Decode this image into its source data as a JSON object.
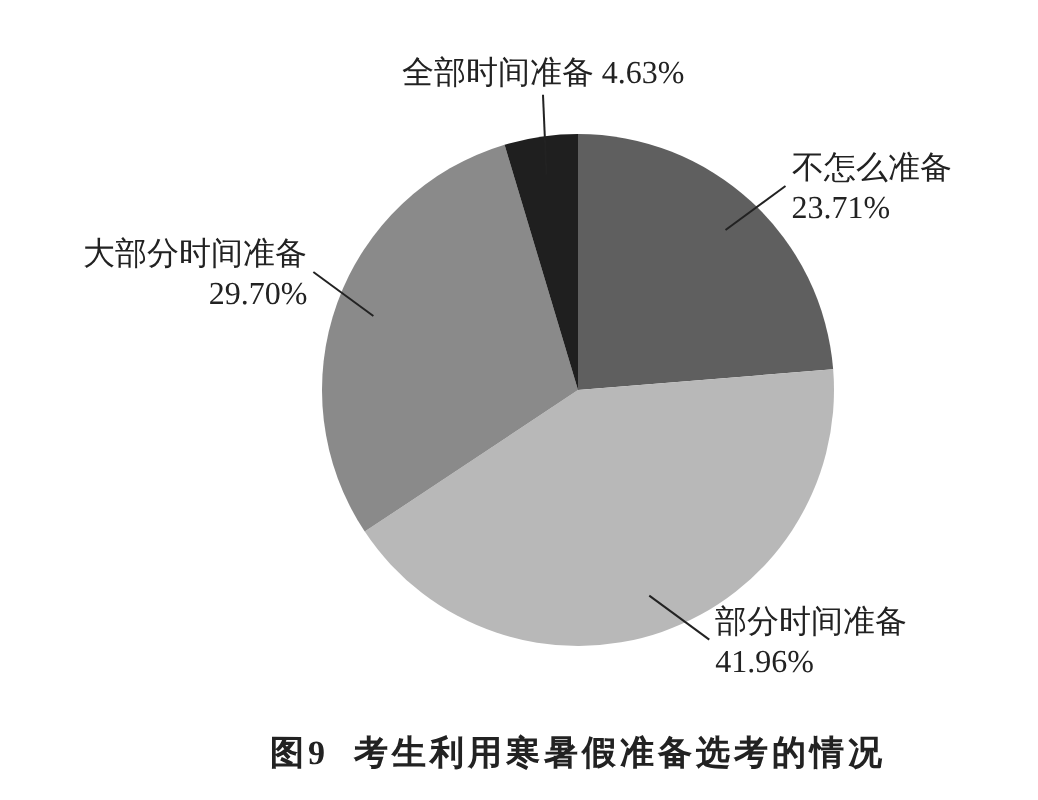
{
  "chart_data": {
    "type": "pie",
    "title": "图9  考生利用寒暑假准备选考的情况",
    "categories": [
      "不怎么准备",
      "部分时间准备",
      "大部分时间准备",
      "全部时间准备"
    ],
    "values": [
      23.71,
      41.96,
      29.7,
      4.63
    ],
    "value_labels": [
      "23.71%",
      "41.96%",
      "29.70%",
      "4.63%"
    ],
    "colors": [
      "#5f5f5f",
      "#b8b8b8",
      "#8a8a8a",
      "#1f1f1f"
    ]
  }
}
